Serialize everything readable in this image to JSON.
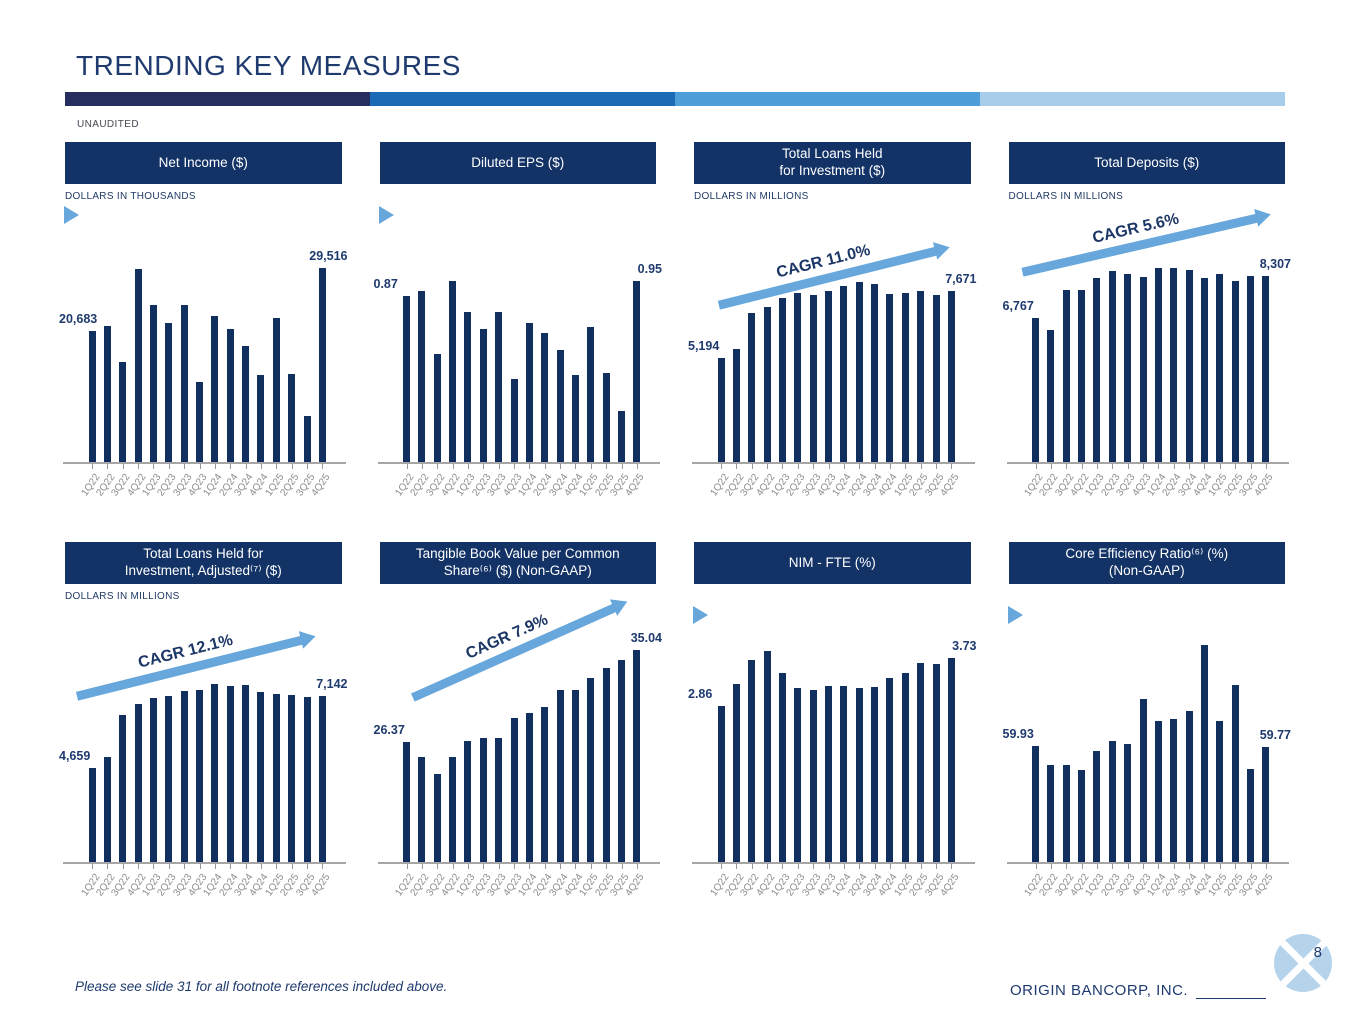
{
  "header": {
    "title": "TRENDING KEY MEASURES",
    "unaudited": "UNAUDITED"
  },
  "accent_bar_colors": [
    "#262e60",
    "#1b6ab5",
    "#4d9ed9",
    "#a8cdea"
  ],
  "colors": {
    "bar_navy": "#12305f",
    "header_box_navy": "#133367",
    "navy_text": "#1e3a6e",
    "arrow_light_blue": "#68a7dc",
    "axis_gray": "#a6a6a6",
    "x_label_gray": "#8c8c8c",
    "logo_light_blue": "#b6d3ec"
  },
  "footer": {
    "footnote": "Please see slide 31 for all footnote references included above.",
    "company": "ORIGIN BANCORP, INC.",
    "page_number": "8"
  },
  "chart_data": [
    {
      "id": "net-income",
      "type": "bar",
      "title": "Net Income ($)",
      "units_label": "DOLLARS IN THOUSANDS",
      "first_value_label": "20,683",
      "last_value_label": "29,516",
      "cagr_label": null,
      "ylim": [
        2000,
        31000
      ],
      "categories": [
        "1Q22",
        "2Q22",
        "3Q22",
        "4Q22",
        "1Q23",
        "2Q23",
        "3Q23",
        "4Q23",
        "1Q24",
        "2Q24",
        "3Q24",
        "4Q24",
        "1Q25",
        "2Q25",
        "3Q25",
        "4Q25"
      ],
      "values": [
        20683,
        21380,
        16270,
        29480,
        24400,
        21850,
        24380,
        13480,
        22780,
        21010,
        18590,
        14400,
        22450,
        14640,
        8590,
        29516
      ]
    },
    {
      "id": "diluted-eps",
      "type": "bar",
      "title": "Diluted EPS ($)",
      "units_label": null,
      "first_value_label": "0.87",
      "last_value_label": "0.95",
      "cagr_label": null,
      "ylim": [
        0,
        1.07
      ],
      "categories": [
        "1Q22",
        "2Q22",
        "3Q22",
        "4Q22",
        "1Q23",
        "2Q23",
        "3Q23",
        "4Q23",
        "1Q24",
        "2Q24",
        "3Q24",
        "4Q24",
        "1Q25",
        "2Q25",
        "3Q25",
        "4Q25"
      ],
      "values": [
        0.87,
        0.9,
        0.57,
        0.95,
        0.79,
        0.7,
        0.79,
        0.44,
        0.73,
        0.68,
        0.59,
        0.46,
        0.71,
        0.47,
        0.27,
        0.95
      ]
    },
    {
      "id": "total-loans-hfi",
      "type": "bar",
      "title": "Total Loans Held\nfor Investment ($)",
      "units_label": "DOLLARS IN MILLIONS",
      "first_value_label": "5,194",
      "last_value_label": "7,671",
      "cagr_label": "CAGR 11.0%",
      "ylim": [
        1300,
        8900
      ],
      "categories": [
        "1Q22",
        "2Q22",
        "3Q22",
        "4Q22",
        "1Q23",
        "2Q23",
        "3Q23",
        "4Q23",
        "1Q24",
        "2Q24",
        "3Q24",
        "4Q24",
        "1Q25",
        "2Q25",
        "3Q25",
        "4Q25"
      ],
      "values": [
        5194,
        5540,
        6850,
        7090,
        7400,
        7600,
        7540,
        7660,
        7850,
        8000,
        7930,
        7560,
        7620,
        7660,
        7540,
        7671
      ]
    },
    {
      "id": "total-deposits",
      "type": "bar",
      "title": "Total Deposits ($)",
      "units_label": "DOLLARS IN MILLIONS",
      "first_value_label": "6,767",
      "last_value_label": "8,307",
      "cagr_label": "CAGR 5.6%",
      "ylim": [
        1500,
        8950
      ],
      "categories": [
        "1Q22",
        "2Q22",
        "3Q22",
        "4Q22",
        "1Q23",
        "2Q23",
        "3Q23",
        "4Q23",
        "1Q24",
        "2Q24",
        "3Q24",
        "4Q24",
        "1Q25",
        "2Q25",
        "3Q25",
        "4Q25"
      ],
      "values": [
        6767,
        6330,
        7800,
        7790,
        8220,
        8480,
        8380,
        8260,
        8580,
        8580,
        8510,
        8220,
        8370,
        8130,
        8310,
        8307
      ]
    },
    {
      "id": "total-loans-hfi-adjusted",
      "type": "bar",
      "title": "Total Loans Held for\nInvestment, Adjusted⁽⁷⁾ ($)",
      "units_label": "DOLLARS IN MILLIONS",
      "first_value_label": "4,659",
      "last_value_label": "7,142",
      "cagr_label": "CAGR 12.1%",
      "ylim": [
        1400,
        8950
      ],
      "categories": [
        "1Q22",
        "2Q22",
        "3Q22",
        "4Q22",
        "1Q23",
        "2Q23",
        "3Q23",
        "4Q23",
        "1Q24",
        "2Q24",
        "3Q24",
        "4Q24",
        "1Q25",
        "2Q25",
        "3Q25",
        "4Q25"
      ],
      "values": [
        4659,
        5030,
        6470,
        6860,
        7060,
        7120,
        7290,
        7340,
        7550,
        7490,
        7500,
        7260,
        7200,
        7150,
        7110,
        7142
      ]
    },
    {
      "id": "tangible-book-value",
      "type": "bar",
      "title": "Tangible Book Value per Common\nShare⁽⁶⁾ ($) (Non-GAAP)",
      "units_label": null,
      "first_value_label": "26.37",
      "last_value_label": "35.04",
      "cagr_label": "CAGR 7.9%",
      "ylim": [
        15,
        35.7
      ],
      "categories": [
        "1Q22",
        "2Q22",
        "3Q22",
        "4Q22",
        "1Q23",
        "2Q23",
        "3Q23",
        "4Q23",
        "1Q24",
        "2Q24",
        "3Q24",
        "4Q24",
        "1Q25",
        "2Q25",
        "3Q25",
        "4Q25"
      ],
      "values": [
        26.37,
        24.99,
        23.38,
        24.95,
        26.46,
        26.78,
        26.72,
        28.6,
        29.14,
        29.67,
        31.24,
        31.28,
        32.44,
        33.35,
        34.07,
        35.04
      ]
    },
    {
      "id": "nim-fte",
      "type": "bar",
      "title": "NIM - FTE (%)",
      "units_label": null,
      "first_value_label": "2.86",
      "last_value_label": "3.73",
      "cagr_label": null,
      "ylim": [
        0,
        4.0
      ],
      "categories": [
        "1Q22",
        "2Q22",
        "3Q22",
        "4Q22",
        "1Q23",
        "2Q23",
        "3Q23",
        "4Q23",
        "1Q24",
        "2Q24",
        "3Q24",
        "4Q24",
        "1Q25",
        "2Q25",
        "3Q25",
        "4Q25"
      ],
      "values": [
        2.86,
        3.25,
        3.69,
        3.85,
        3.46,
        3.18,
        3.15,
        3.21,
        3.21,
        3.18,
        3.2,
        3.36,
        3.45,
        3.64,
        3.62,
        3.73
      ]
    },
    {
      "id": "core-efficiency-ratio",
      "type": "bar",
      "title": "Core Efficiency Ratio⁽⁶⁾ (%)\n(Non-GAAP)",
      "units_label": null,
      "first_value_label": "59.93",
      "last_value_label": "59.77",
      "cagr_label": null,
      "ylim": [
        45,
        73
      ],
      "categories": [
        "1Q22",
        "2Q22",
        "3Q22",
        "4Q22",
        "1Q23",
        "2Q23",
        "3Q23",
        "4Q23",
        "1Q24",
        "2Q24",
        "3Q24",
        "4Q24",
        "1Q25",
        "2Q25",
        "3Q25",
        "4Q25"
      ],
      "values": [
        59.93,
        57.5,
        57.5,
        56.9,
        59.2,
        60.5,
        60.2,
        65.9,
        63.1,
        63.3,
        64.3,
        72.7,
        63.1,
        67.7,
        57.0,
        59.77
      ]
    }
  ]
}
